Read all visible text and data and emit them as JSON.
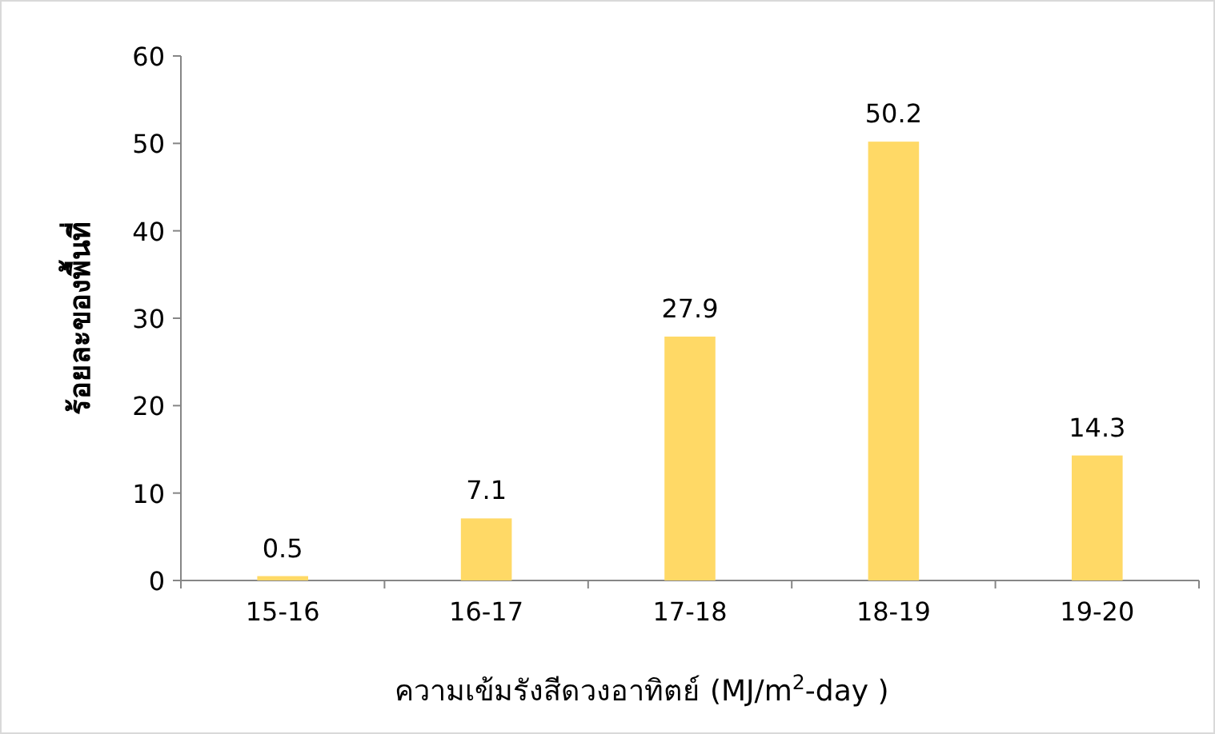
{
  "chart_data": {
    "type": "bar",
    "xlabel": "ความเข้มรังสีดวงอาทิตย์  (MJ/m$^{2}$-day )",
    "ylabel": "ร้อยละของพื้นที่",
    "categories": [
      "15-16",
      "16-17",
      "17-18",
      "18-19",
      "19-20"
    ],
    "values": [
      0.5,
      7.1,
      27.9,
      50.2,
      14.3
    ],
    "color": "#ffd966",
    "data_labels": true,
    "ylim": [
      0,
      60
    ],
    "yticks": [
      0,
      10,
      20,
      30,
      40,
      50,
      60
    ]
  }
}
